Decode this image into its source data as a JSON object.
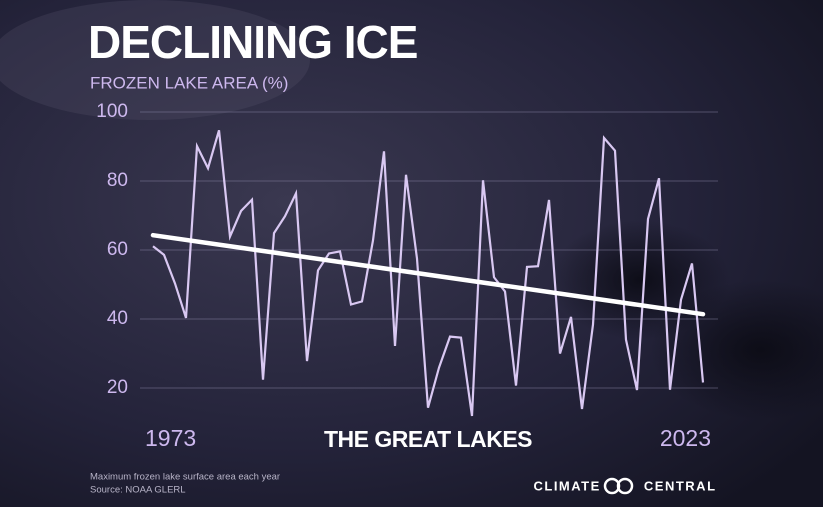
{
  "chart_data": {
    "type": "line",
    "title": "DECLINING ICE",
    "subtitle": "FROZEN LAKE AREA (%)",
    "annotation": "THE GREAT LAKES",
    "footnote": "Maximum frozen lake surface area each year",
    "source": "Source: NOAA GLERL",
    "brand": "CLIMATE CENTRAL",
    "x": [
      1973,
      1974,
      1975,
      1976,
      1977,
      1978,
      1979,
      1980,
      1981,
      1982,
      1983,
      1984,
      1985,
      1986,
      1987,
      1988,
      1989,
      1990,
      1991,
      1992,
      1993,
      1994,
      1995,
      1996,
      1997,
      1998,
      1999,
      2000,
      2001,
      2002,
      2003,
      2004,
      2005,
      2006,
      2007,
      2008,
      2009,
      2010,
      2011,
      2012,
      2013,
      2014,
      2015,
      2016,
      2017,
      2018,
      2019,
      2020,
      2021,
      2022,
      2023
    ],
    "series": [
      {
        "color": "#d9c8f2",
        "values": [
          61.1,
          58.6,
          50.3,
          40.3,
          90.1,
          83.7,
          94.7,
          63.9,
          71.3,
          74.6,
          22.4,
          64.9,
          69.8,
          76.4,
          27.8,
          54.1,
          59.0,
          59.6,
          44.2,
          45.1,
          62.8,
          88.6,
          32.2,
          81.8,
          57.5,
          14.3,
          25.9,
          34.9,
          34.6,
          11.9,
          80.2,
          52.1,
          48.0,
          20.7,
          55.1,
          55.3,
          74.5,
          30.0,
          40.6,
          13.9,
          38.4,
          92.5,
          88.8,
          34.0,
          19.4,
          69.0,
          80.8,
          19.5,
          45.6,
          56.1,
          21.6
        ]
      }
    ],
    "trendline": {
      "x": [
        1973,
        2023
      ],
      "values": [
        64.3,
        41.4
      ],
      "color": "#ffffff"
    },
    "xlim": [
      1973,
      2023
    ],
    "xticks": [
      1973,
      2023
    ],
    "ylim": [
      10,
      100
    ],
    "yticks": [
      20,
      40,
      60,
      80,
      100
    ],
    "grid": true
  }
}
